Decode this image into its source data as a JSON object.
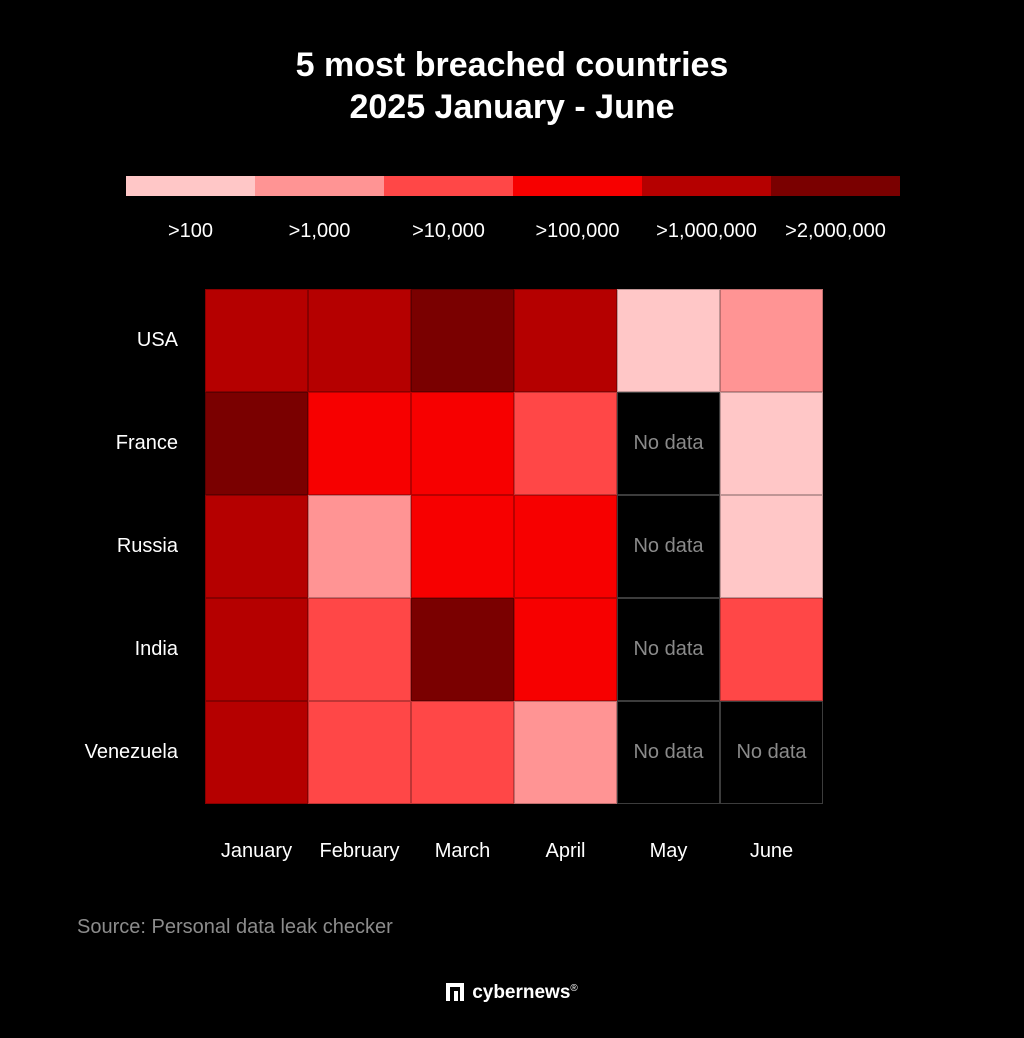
{
  "chart_data": {
    "type": "heatmap",
    "title": "5 most breached countries",
    "subtitle": "2025 January - June",
    "legend": {
      "labels": [
        ">100",
        ">1,000",
        ">10,000",
        ">100,000",
        ">1,000,000",
        ">2,000,000"
      ],
      "colors": [
        "#ffc7c7",
        "#ff9494",
        "#ff4747",
        "#f70000",
        "#b50000",
        "#7a0000"
      ]
    },
    "rows": [
      "USA",
      "France",
      "Russia",
      "India",
      "Venezuela"
    ],
    "columns": [
      "January",
      "February",
      "March",
      "April",
      "May",
      "June"
    ],
    "values": [
      [
        ">1,000,000",
        ">1,000,000",
        ">2,000,000",
        ">1,000,000",
        ">100",
        ">1,000"
      ],
      [
        ">2,000,000",
        ">100,000",
        ">100,000",
        ">10,000",
        null,
        ">100"
      ],
      [
        ">1,000,000",
        ">1,000",
        ">100,000",
        ">100,000",
        null,
        ">100"
      ],
      [
        ">1,000,000",
        ">10,000",
        ">2,000,000",
        ">100,000",
        null,
        ">10,000"
      ],
      [
        ">1,000,000",
        ">10,000",
        ">10,000",
        ">1,000",
        null,
        null
      ]
    ],
    "no_data_label": "No data"
  },
  "source": "Source: Personal data leak checker",
  "brand": "cybernews",
  "brand_mark": "®"
}
